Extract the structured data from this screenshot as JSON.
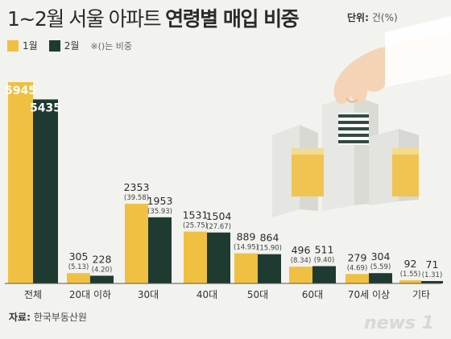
{
  "title": {
    "normal": "1~2월 서울 아파트",
    "bold": "연령별 매입 비중"
  },
  "unit": {
    "label": "단위:",
    "value": "건(%)"
  },
  "legend": {
    "items": [
      {
        "name": "1월",
        "color": "#f0c042"
      },
      {
        "name": "2월",
        "color": "#1f3a31"
      }
    ],
    "note": "※()는 비중"
  },
  "source": {
    "label": "자료:",
    "value": "한국부동산원"
  },
  "logo": "news 1",
  "colors": {
    "jan": "#f0c042",
    "feb": "#1f3a31",
    "background": "#f2f2ef"
  },
  "chart_data": {
    "type": "bar",
    "categories": [
      "전체",
      "20대 이하",
      "30대",
      "40대",
      "50대",
      "60대",
      "70세 이상",
      "기타"
    ],
    "series": [
      {
        "name": "1월",
        "values": [
          5945,
          305,
          2353,
          1531,
          889,
          496,
          279,
          92
        ],
        "shares": [
          "",
          "(5.13)",
          "(39.58)",
          "(25.75)",
          "(14.95)",
          "(8.34)",
          "(4.69)",
          "(1.55)"
        ]
      },
      {
        "name": "2월",
        "values": [
          5435,
          228,
          1953,
          1504,
          864,
          511,
          304,
          71
        ],
        "shares": [
          "",
          "(4.20)",
          "(35.93)",
          "(27.67)",
          "(15.90)",
          "(9.40)",
          "(5.59)",
          "(1.31)"
        ]
      }
    ],
    "ylim": [
      0,
      5945
    ],
    "grid": false,
    "legend_position": "top-left"
  }
}
